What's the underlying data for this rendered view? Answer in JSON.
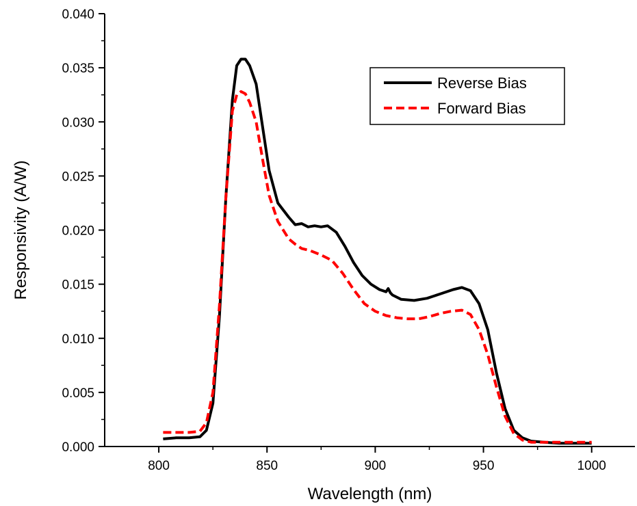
{
  "chart_data": {
    "type": "line",
    "title": "",
    "xlabel": "Wavelength (nm)",
    "ylabel": "Responsivity (A/W)",
    "xlim": [
      775,
      1020
    ],
    "ylim": [
      0.0,
      0.04
    ],
    "x_ticks": [
      "800",
      "850",
      "900",
      "950",
      "1000"
    ],
    "y_ticks": [
      "0.000",
      "0.005",
      "0.010",
      "0.015",
      "0.020",
      "0.025",
      "0.030",
      "0.035",
      "0.040"
    ],
    "grid": false,
    "legend_position": "top-right",
    "series": [
      {
        "name": "Reverse Bias",
        "color": "#000000",
        "style": "solid",
        "x": [
          802,
          808,
          814,
          819,
          822,
          825,
          828,
          831,
          834,
          836,
          838,
          840,
          842,
          845,
          848,
          851,
          855,
          860,
          863,
          866,
          869,
          872,
          875,
          878,
          882,
          886,
          890,
          894,
          898,
          902,
          905,
          906,
          907,
          908,
          912,
          918,
          924,
          930,
          936,
          940,
          944,
          948,
          952,
          956,
          960,
          964,
          968,
          972,
          978,
          985,
          992,
          1000
        ],
        "y": [
          0.0007,
          0.0008,
          0.0008,
          0.0009,
          0.0015,
          0.004,
          0.012,
          0.023,
          0.032,
          0.0352,
          0.0358,
          0.0358,
          0.0352,
          0.0335,
          0.0295,
          0.0255,
          0.0225,
          0.0212,
          0.0205,
          0.0206,
          0.0203,
          0.0204,
          0.0203,
          0.0204,
          0.0198,
          0.0185,
          0.017,
          0.0158,
          0.015,
          0.0145,
          0.0143,
          0.0146,
          0.0142,
          0.014,
          0.0136,
          0.0135,
          0.0137,
          0.0141,
          0.0145,
          0.0147,
          0.0144,
          0.0132,
          0.0108,
          0.0068,
          0.0035,
          0.0015,
          0.0008,
          0.0005,
          0.0004,
          0.0003,
          0.0003,
          0.0003
        ]
      },
      {
        "name": "Forward Bias",
        "color": "#ff0000",
        "style": "dashed",
        "x": [
          802,
          808,
          814,
          819,
          822,
          825,
          828,
          831,
          834,
          836,
          838,
          840,
          842,
          845,
          848,
          851,
          855,
          860,
          863,
          866,
          870,
          875,
          880,
          885,
          890,
          895,
          900,
          905,
          910,
          915,
          920,
          925,
          930,
          935,
          940,
          944,
          948,
          952,
          956,
          960,
          964,
          968,
          972,
          978,
          985,
          992,
          1000
        ],
        "y": [
          0.0013,
          0.0013,
          0.0013,
          0.0014,
          0.0022,
          0.005,
          0.013,
          0.023,
          0.031,
          0.0325,
          0.0328,
          0.0326,
          0.0318,
          0.03,
          0.0265,
          0.0232,
          0.0208,
          0.0192,
          0.0187,
          0.0183,
          0.0181,
          0.0177,
          0.0172,
          0.016,
          0.0145,
          0.0132,
          0.0125,
          0.0121,
          0.0119,
          0.0118,
          0.0118,
          0.012,
          0.0123,
          0.0125,
          0.0126,
          0.0122,
          0.0108,
          0.0085,
          0.0055,
          0.0028,
          0.0012,
          0.0006,
          0.0004,
          0.0004,
          0.0004,
          0.0004,
          0.0004
        ]
      }
    ]
  }
}
